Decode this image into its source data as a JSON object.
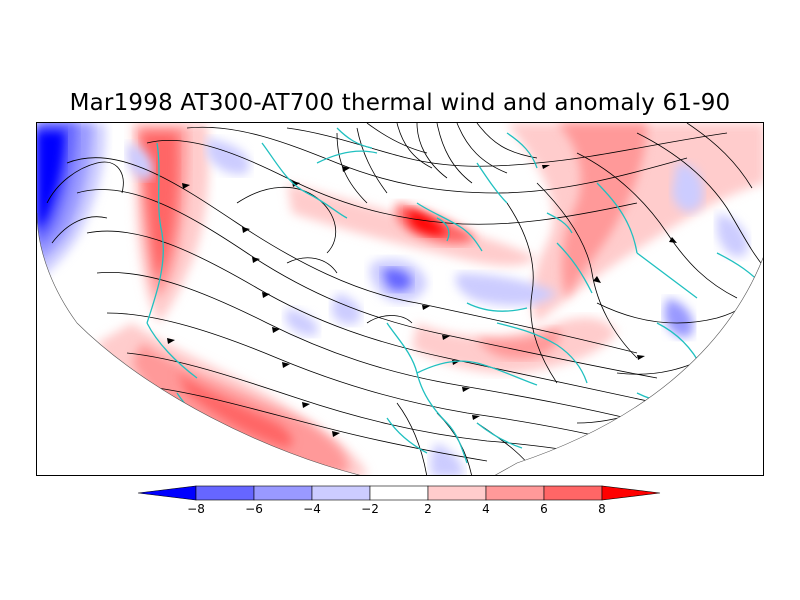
{
  "title": "Mar1998 AT300-AT700 thermal wind and anomaly 61-90",
  "colorbar": {
    "ticks": [
      "-8",
      "-6",
      "-4",
      "-2",
      "2",
      "4",
      "6",
      "8"
    ],
    "colors": [
      "#0000ff",
      "#6666ff",
      "#9999ff",
      "#ccccff",
      "#ffffff",
      "#ffcccc",
      "#ff9999",
      "#ff6666",
      "#ff0000"
    ]
  },
  "map": {
    "projection": "polar-stereographic",
    "features": [
      "streamlines",
      "coastlines",
      "anomaly-shading"
    ],
    "coastline_color": "#20c0c0"
  }
}
